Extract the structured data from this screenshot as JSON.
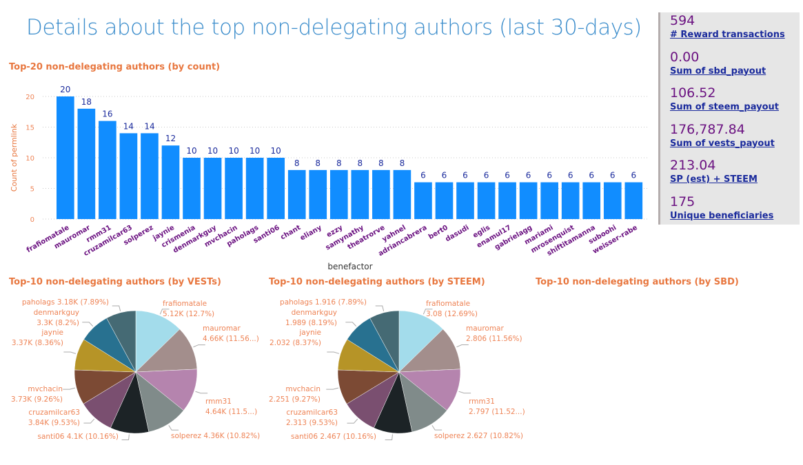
{
  "page_title": "Details about the top non-delegating authors (last 30-days)",
  "kpis": [
    {
      "value": "594",
      "label": "# Reward transactions"
    },
    {
      "value": "0.00",
      "label": "Sum of sbd_payout"
    },
    {
      "value": "106.52",
      "label": "Sum of steem_payout"
    },
    {
      "value": "176,787.84",
      "label": "Sum of vests_payout"
    },
    {
      "value": "213.04",
      "label": "SP (est) + STEEM"
    },
    {
      "value": "175",
      "label": "Unique beneficiaries"
    }
  ],
  "colors": {
    "bar": "#118DFF",
    "title": "#3A8CCB",
    "chart_title": "#E8773F",
    "tick_label": "#6B1281",
    "kpi_value": "#6B1281",
    "kpi_label": "#1A2A9C"
  },
  "chart_data": [
    {
      "type": "bar",
      "title": "Top-20 non-delegating authors (by count)",
      "xlabel": "benefactor",
      "ylabel": "Count of permlink",
      "ylim": [
        0,
        20
      ],
      "yticks": [
        0,
        5,
        10,
        15,
        20
      ],
      "grid": true,
      "categories": [
        "frafiomatale",
        "mauromar",
        "rmm31",
        "cruzamilcar63",
        "solperez",
        "jaynie",
        "crismenia",
        "denmarkguy",
        "mvchacin",
        "paholags",
        "santi06",
        "chant",
        "eliany",
        "ezzy",
        "samynathy",
        "theatrorve",
        "yahnel",
        "adriancabrera",
        "bert0",
        "dasudi",
        "eglis",
        "enamul17",
        "gabrielagg",
        "mariami",
        "mrosenquist",
        "shiftitamanna",
        "suboohi",
        "weisser-rabe"
      ],
      "values": [
        20,
        18,
        16,
        14,
        14,
        12,
        10,
        10,
        10,
        10,
        10,
        8,
        8,
        8,
        8,
        8,
        8,
        6,
        6,
        6,
        6,
        6,
        6,
        6,
        6,
        6,
        6,
        6
      ]
    },
    {
      "type": "pie",
      "title": "Top-10 non-delegating authors (by VESTs)",
      "slices": [
        {
          "name": "frafiomatale",
          "label": "5.12K (12.7%)",
          "percent": 12.7
        },
        {
          "name": "mauromar",
          "label": "4.66K (11.56...)",
          "percent": 11.56
        },
        {
          "name": "rmm31",
          "label": "4.64K (11.5...)",
          "percent": 11.52
        },
        {
          "name": "solperez",
          "label": "4.36K (10.82%)",
          "percent": 10.82
        },
        {
          "name": "santi06",
          "label": "4.1K (10.16%)",
          "percent": 10.16
        },
        {
          "name": "cruzamilcar63",
          "label": "3.84K (9.53%)",
          "percent": 9.53
        },
        {
          "name": "mvchacin",
          "label": "3.73K (9.26%)",
          "percent": 9.26
        },
        {
          "name": "jaynie",
          "label": "3.37K (8.36%)",
          "percent": 8.36
        },
        {
          "name": "denmarkguy",
          "label": "3.3K (8.2%)",
          "percent": 8.2
        },
        {
          "name": "paholags",
          "label": "3.18K (7.89%)",
          "percent": 7.89
        }
      ]
    },
    {
      "type": "pie",
      "title": "Top-10 non-delegating authors (by STEEM)",
      "slices": [
        {
          "name": "frafiomatale",
          "label": "3.08 (12.69%)",
          "percent": 12.69
        },
        {
          "name": "mauromar",
          "label": "2.806 (11.56%)",
          "percent": 11.56
        },
        {
          "name": "rmm31",
          "label": "2.797 (11.52...)",
          "percent": 11.52
        },
        {
          "name": "solperez",
          "label": "2.627 (10.82%)",
          "percent": 10.82
        },
        {
          "name": "santi06",
          "label": "2.467 (10.16%)",
          "percent": 10.16
        },
        {
          "name": "cruzamilcar63",
          "label": "2.313 (9.53%)",
          "percent": 9.53
        },
        {
          "name": "mvchacin",
          "label": "2.251 (9.27%)",
          "percent": 9.27
        },
        {
          "name": "jaynie",
          "label": "2.032 (8.37%)",
          "percent": 8.37
        },
        {
          "name": "denmarkguy",
          "label": "1.989 (8.19%)",
          "percent": 8.19
        },
        {
          "name": "paholags",
          "label": "1.916 (7.89%)",
          "percent": 7.89
        }
      ]
    },
    {
      "type": "pie",
      "title": "Top-10 non-delegating authors (by SBD)",
      "slices": []
    }
  ],
  "pie_colors": [
    "#A3DCEB",
    "#A38E8C",
    "#B584AE",
    "#808B8A",
    "#1C2326",
    "#7A4F70",
    "#7C4A34",
    "#B69427",
    "#287190",
    "#456A74"
  ]
}
